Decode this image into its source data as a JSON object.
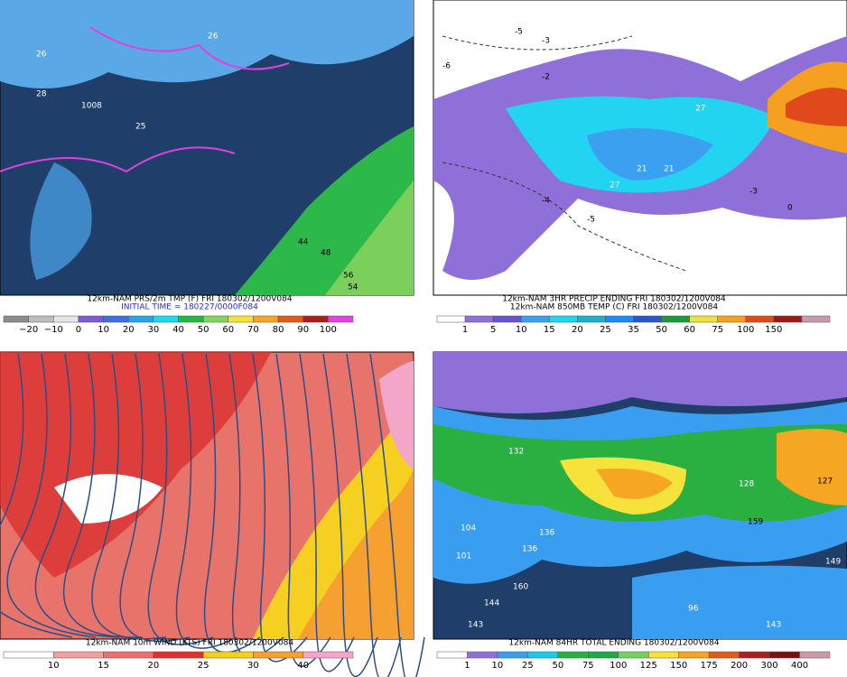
{
  "panels": [
    {
      "captions": [
        "12km-NAM PRS/2m TMP (F) FRI 180302/1200V084",
        "INITIAL TIME = 180227/0000F084"
      ],
      "colorbar": {
        "labels": [
          "−20",
          "−10",
          "0",
          "10",
          "20",
          "30",
          "40",
          "50",
          "60",
          "70",
          "80",
          "90",
          "100"
        ],
        "colors": [
          "#8c8c8c",
          "#bdbdbd",
          "#e6e6e6",
          "#7b5cd6",
          "#3f6fe0",
          "#2ba3ea",
          "#1ed6f0",
          "#22b845",
          "#84d35a",
          "#f5e23a",
          "#f5a623",
          "#e05a1b",
          "#a82020",
          "#d946e0"
        ]
      },
      "map_labels": [
        "26",
        "28",
        "26",
        "1008",
        "25",
        "44",
        "48",
        "56",
        "54"
      ]
    },
    {
      "captions": [
        "12km-NAM 3HR PRECIP ENDING FRI 180302/1200V084",
        "12km-NAM 850MB TEMP (C) FRI 180302/1200V084"
      ],
      "colorbar": {
        "labels": [
          "1",
          "5",
          "10",
          "15",
          "20",
          "25",
          "35",
          "50",
          "60",
          "75",
          "100",
          "150"
        ],
        "colors": [
          "#ffffff",
          "#8f70d8",
          "#6a52c8",
          "#3ba0f0",
          "#22d4f0",
          "#1fb0c8",
          "#1e88ff",
          "#2b55c8",
          "#1a9a3a",
          "#f0e040",
          "#f5a020",
          "#e04a1a",
          "#9a1a1a",
          "#c89ab0"
        ]
      },
      "map_labels": [
        "-5",
        "-3",
        "-2",
        "-4",
        "-6",
        "-5",
        "-3",
        "0",
        "27",
        "21",
        "27",
        "21"
      ]
    },
    {
      "captions": [
        "12km-NAM 10m WIND (KTS) FRI 180302/1200V084"
      ],
      "colorbar": {
        "labels": [
          "10",
          "15",
          "20",
          "25",
          "30",
          "40"
        ],
        "colors": [
          "#ffffff",
          "#f0a0a0",
          "#e87070",
          "#e03030",
          "#f5d020",
          "#f5a030",
          "#f4a6c8"
        ]
      },
      "map_labels": []
    },
    {
      "captions": [
        "12km-NAM 84HR TOTAL ENDING 180302/1200V084"
      ],
      "colorbar": {
        "labels": [
          "1",
          "10",
          "25",
          "50",
          "75",
          "100",
          "125",
          "150",
          "175",
          "200",
          "300",
          "400"
        ],
        "colors": [
          "#ffffff",
          "#8f70d8",
          "#3a9ef0",
          "#1ec8e8",
          "#2ab040",
          "#22a848",
          "#74d060",
          "#f5e23a",
          "#f5a623",
          "#e05a1b",
          "#a82020",
          "#7a1010",
          "#c89ab0"
        ]
      },
      "map_labels": [
        "132",
        "104",
        "101",
        "136",
        "136",
        "160",
        "144",
        "143",
        "96",
        "143",
        "159",
        "128",
        "149",
        "127"
      ]
    }
  ]
}
